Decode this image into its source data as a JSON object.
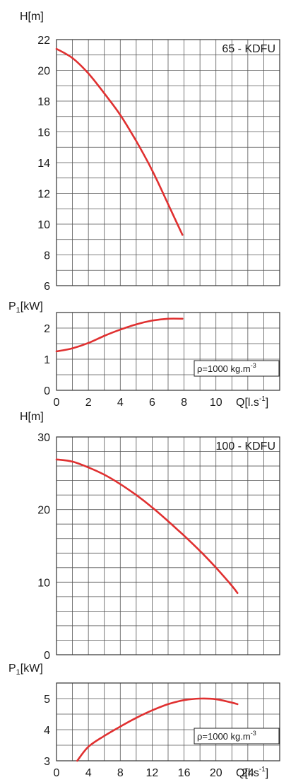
{
  "chart_data": [
    {
      "type": "line",
      "title": "65 - KDFU",
      "ylabel": "H[m]",
      "ylim": [
        6,
        22
      ],
      "yticks": [
        "6",
        "8",
        "10",
        "12",
        "14",
        "16",
        "18",
        "20",
        "22"
      ],
      "xlim": [
        0,
        14
      ],
      "x": [
        0,
        1,
        2,
        3,
        4,
        5,
        6,
        7,
        7.9
      ],
      "y": [
        21.4,
        20.8,
        19.8,
        18.5,
        17.1,
        15.4,
        13.5,
        11.3,
        9.3
      ],
      "grid": true
    },
    {
      "type": "line",
      "ylabel": "P₁[kW]",
      "ylim": [
        0,
        2.5
      ],
      "yticks": [
        "0",
        "1",
        "2"
      ],
      "xlim": [
        0,
        14
      ],
      "xlabel": "Q[l.s⁻¹]",
      "xticks": [
        "0",
        "2",
        "4",
        "6",
        "8",
        "10"
      ],
      "x": [
        0,
        1,
        2,
        3,
        4,
        5,
        6,
        7,
        7.9
      ],
      "y": [
        1.25,
        1.35,
        1.52,
        1.75,
        1.95,
        2.12,
        2.24,
        2.3,
        2.3
      ],
      "annotation": "ρ=1000 kg.m⁻³",
      "grid": true
    },
    {
      "type": "line",
      "title": "100 - KDFU",
      "ylabel": "H[m]",
      "ylim": [
        0,
        30
      ],
      "yticks": [
        "0",
        "10",
        "20",
        "30"
      ],
      "xlim": [
        0,
        28
      ],
      "x": [
        0,
        2,
        4,
        6,
        8,
        10,
        12,
        14,
        16,
        18,
        20,
        22,
        22.7
      ],
      "y": [
        26.9,
        26.6,
        25.8,
        24.8,
        23.5,
        22,
        20.3,
        18.4,
        16.4,
        14.3,
        12,
        9.5,
        8.5
      ],
      "grid": true
    },
    {
      "type": "line",
      "ylabel": "P₁[kW]",
      "ylim": [
        3,
        5.5
      ],
      "yticks": [
        "3",
        "4",
        "5"
      ],
      "xlim": [
        0,
        28
      ],
      "xlabel": "Q[l.s⁻¹]",
      "xticks": [
        "0",
        "4",
        "8",
        "12",
        "16",
        "20",
        "24"
      ],
      "x": [
        2.6,
        4,
        6,
        8,
        10,
        12,
        14,
        16,
        18,
        20,
        22,
        22.7
      ],
      "y": [
        3.0,
        3.45,
        3.8,
        4.1,
        4.38,
        4.62,
        4.82,
        4.95,
        5.0,
        4.98,
        4.87,
        4.82
      ],
      "annotation": "ρ=1000 kg.m⁻³",
      "grid": true
    }
  ]
}
